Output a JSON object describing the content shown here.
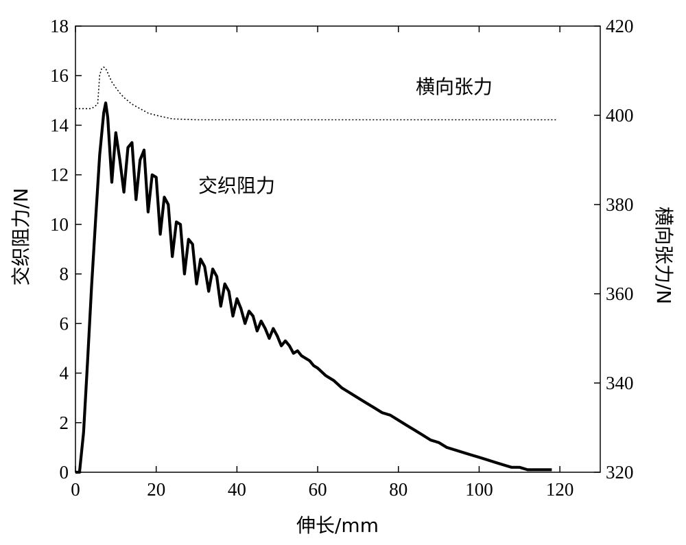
{
  "chart_data": {
    "type": "line",
    "xlabel": "伸长/mm",
    "ylabel_left": "交织阻力/N",
    "ylabel_right": "横向张力/N",
    "xlim": [
      0,
      130
    ],
    "ylim_left": [
      0,
      18
    ],
    "ylim_right": [
      320,
      420
    ],
    "x_ticks": [
      0,
      20,
      40,
      60,
      80,
      100,
      120
    ],
    "y_left_ticks": [
      0,
      2,
      4,
      6,
      8,
      10,
      12,
      14,
      16,
      18
    ],
    "y_right_ticks": [
      320,
      340,
      360,
      380,
      400,
      420
    ],
    "grid": false,
    "series": [
      {
        "name": "交织阻力",
        "axis": "left",
        "style": "solid-thick",
        "x": [
          0,
          1,
          2,
          3,
          4,
          5,
          6,
          7,
          7.5,
          8,
          9,
          10,
          11,
          12,
          13,
          14,
          15,
          16,
          17,
          18,
          19,
          20,
          21,
          22,
          23,
          24,
          25,
          26,
          27,
          28,
          29,
          30,
          31,
          32,
          33,
          34,
          35,
          36,
          37,
          38,
          39,
          40,
          41,
          42,
          43,
          44,
          45,
          46,
          47,
          48,
          49,
          50,
          51,
          52,
          53,
          54,
          55,
          56,
          57,
          58,
          59,
          60,
          62,
          64,
          66,
          68,
          70,
          72,
          74,
          76,
          78,
          80,
          82,
          84,
          86,
          88,
          90,
          92,
          94,
          96,
          98,
          100,
          102,
          104,
          106,
          108,
          110,
          112,
          114,
          116,
          118
        ],
        "values": [
          0,
          0,
          1.6,
          4.5,
          7.5,
          10.2,
          12.8,
          14.5,
          14.9,
          14.3,
          11.7,
          13.7,
          12.6,
          11.3,
          13.1,
          13.3,
          11.0,
          12.6,
          13.0,
          10.5,
          12.0,
          11.9,
          9.6,
          11.1,
          10.8,
          8.7,
          10.1,
          10.0,
          8.0,
          9.4,
          9.2,
          7.6,
          8.6,
          8.3,
          7.3,
          8.2,
          7.9,
          6.7,
          7.6,
          7.3,
          6.3,
          7.0,
          6.6,
          6.0,
          6.5,
          6.3,
          5.7,
          6.1,
          5.8,
          5.4,
          5.8,
          5.5,
          5.1,
          5.3,
          5.1,
          4.8,
          4.9,
          4.7,
          4.6,
          4.5,
          4.3,
          4.2,
          3.9,
          3.7,
          3.4,
          3.2,
          3.0,
          2.8,
          2.6,
          2.4,
          2.3,
          2.1,
          1.9,
          1.7,
          1.5,
          1.3,
          1.2,
          1.0,
          0.9,
          0.8,
          0.7,
          0.6,
          0.5,
          0.4,
          0.3,
          0.2,
          0.2,
          0.1,
          0.1,
          0.1,
          0.1
        ]
      },
      {
        "name": "横向张力",
        "axis": "right",
        "style": "dotted",
        "x": [
          0,
          4,
          5.5,
          6,
          6.5,
          7,
          7.5,
          8,
          8.5,
          9,
          10,
          11,
          12,
          14,
          16,
          18,
          20,
          24,
          30,
          40,
          60,
          80,
          100,
          119
        ],
        "values": [
          401.5,
          401.5,
          402.5,
          409,
          410.5,
          410.8,
          410.5,
          409.5,
          408.5,
          407.5,
          406.2,
          405,
          404,
          402.5,
          401.5,
          400.5,
          400,
          399.2,
          399,
          399,
          399,
          399,
          399,
          399
        ]
      }
    ],
    "annotations": [
      {
        "text": "横向张力",
        "x": 84,
        "y": 15.8
      },
      {
        "text": "交织阻力",
        "x": 40,
        "y": 11.8
      }
    ]
  }
}
